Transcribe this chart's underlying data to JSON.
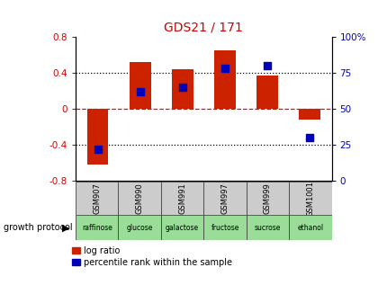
{
  "title": "GDS21 / 171",
  "samples": [
    "GSM907",
    "GSM990",
    "GSM991",
    "GSM997",
    "GSM999",
    "GSM1001"
  ],
  "protocols": [
    "raffinose",
    "glucose",
    "galactose",
    "fructose",
    "sucrose",
    "ethanol"
  ],
  "log_ratios": [
    -0.62,
    0.52,
    0.44,
    0.65,
    0.37,
    -0.12
  ],
  "percentile_ranks": [
    22,
    62,
    65,
    78,
    80,
    30
  ],
  "bar_color": "#cc2200",
  "pct_color": "#0000bb",
  "protocol_bg_color": "#99dd99",
  "sample_bg_color": "#cccccc",
  "ylim_left": [
    -0.8,
    0.8
  ],
  "ylim_right": [
    0,
    100
  ],
  "yticks_left": [
    -0.8,
    -0.4,
    0.0,
    0.4,
    0.8
  ],
  "yticks_right": [
    0,
    25,
    50,
    75,
    100
  ],
  "hline_vals": [
    -0.4,
    0.0,
    0.4
  ],
  "hline_styles": [
    "dotted",
    "dashed",
    "dotted"
  ],
  "hline_colors": [
    "black",
    "red",
    "black"
  ],
  "bar_width": 0.5,
  "growth_protocol_label": "growth protocol",
  "legend_log_ratio": "log ratio",
  "legend_pct": "percentile rank within the sample",
  "title_color": "#cc0000",
  "left_tick_color": "#cc0000",
  "right_tick_color": "#0000bb"
}
